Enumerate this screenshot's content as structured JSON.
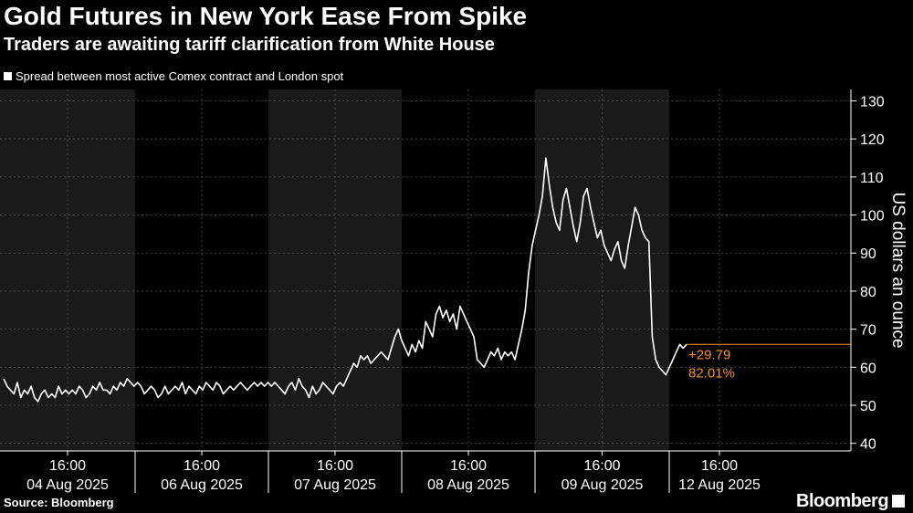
{
  "chart_data": {
    "type": "line",
    "title": "Gold Futures in New York Ease From Spike",
    "subtitle": "Traders are awaiting tariff clarification from White House",
    "legend": "Spread between most active Comex contract and London spot",
    "ylabel": "US dollars an ounce",
    "ylim": [
      38,
      133
    ],
    "yticks": [
      40,
      50,
      60,
      70,
      80,
      90,
      100,
      110,
      120,
      130
    ],
    "grid": true,
    "x_tick_labels": [
      {
        "time": "16:00",
        "date": "04 Aug 2025"
      },
      {
        "time": "16:00",
        "date": "06 Aug 2025"
      },
      {
        "time": "16:00",
        "date": "07 Aug 2025"
      },
      {
        "time": "16:00",
        "date": "08 Aug 2025"
      },
      {
        "time": "16:00",
        "date": "09 Aug 2025"
      },
      {
        "time": "16:00",
        "date": "12 Aug 2025"
      }
    ],
    "last_value": 66,
    "annotation_change": "+29.79",
    "annotation_pct": "82.01%",
    "series": [
      {
        "values": [
          57,
          55,
          54,
          53,
          56,
          52,
          54,
          53,
          55,
          52,
          51,
          53,
          54,
          52,
          53,
          52,
          55,
          53,
          54,
          53,
          54,
          53,
          55,
          54,
          52,
          53,
          55,
          54,
          56,
          54,
          54,
          53,
          55,
          54,
          56,
          55,
          57,
          56,
          55,
          56,
          55,
          53,
          54,
          55,
          54,
          52,
          53,
          55,
          53,
          54,
          55,
          54,
          56,
          53,
          55,
          54,
          53,
          55,
          54,
          56,
          55,
          54,
          56,
          55,
          53,
          54,
          55,
          54,
          55,
          56,
          55,
          54,
          55,
          56,
          55,
          56,
          55,
          56,
          55,
          56,
          55,
          54,
          53,
          55,
          56,
          54,
          57,
          55,
          54,
          52,
          55,
          53,
          54,
          56,
          55,
          54,
          53,
          55,
          56,
          55,
          57,
          59,
          61,
          60,
          63,
          62,
          63,
          61,
          62,
          63,
          64,
          63,
          62,
          65,
          68,
          70,
          67,
          65,
          63,
          66,
          64,
          67,
          65,
          72,
          70,
          68,
          74,
          76,
          73,
          75,
          72,
          74,
          70,
          76,
          74,
          72,
          70,
          68,
          62,
          61,
          60,
          62,
          64,
          63,
          65,
          62,
          64,
          63,
          64,
          62,
          66,
          70,
          75,
          85,
          92,
          96,
          100,
          105,
          115,
          108,
          102,
          98,
          96,
          104,
          107,
          102,
          97,
          93,
          98,
          105,
          107,
          102,
          98,
          94,
          96,
          92,
          90,
          88,
          91,
          93,
          88,
          86,
          92,
          97,
          102,
          100,
          96,
          94,
          93,
          68,
          62,
          60,
          59,
          58,
          60,
          62,
          64,
          66,
          65,
          66
        ]
      }
    ]
  },
  "footer": {
    "source": "Source: Bloomberg",
    "brand": "Bloomberg"
  }
}
